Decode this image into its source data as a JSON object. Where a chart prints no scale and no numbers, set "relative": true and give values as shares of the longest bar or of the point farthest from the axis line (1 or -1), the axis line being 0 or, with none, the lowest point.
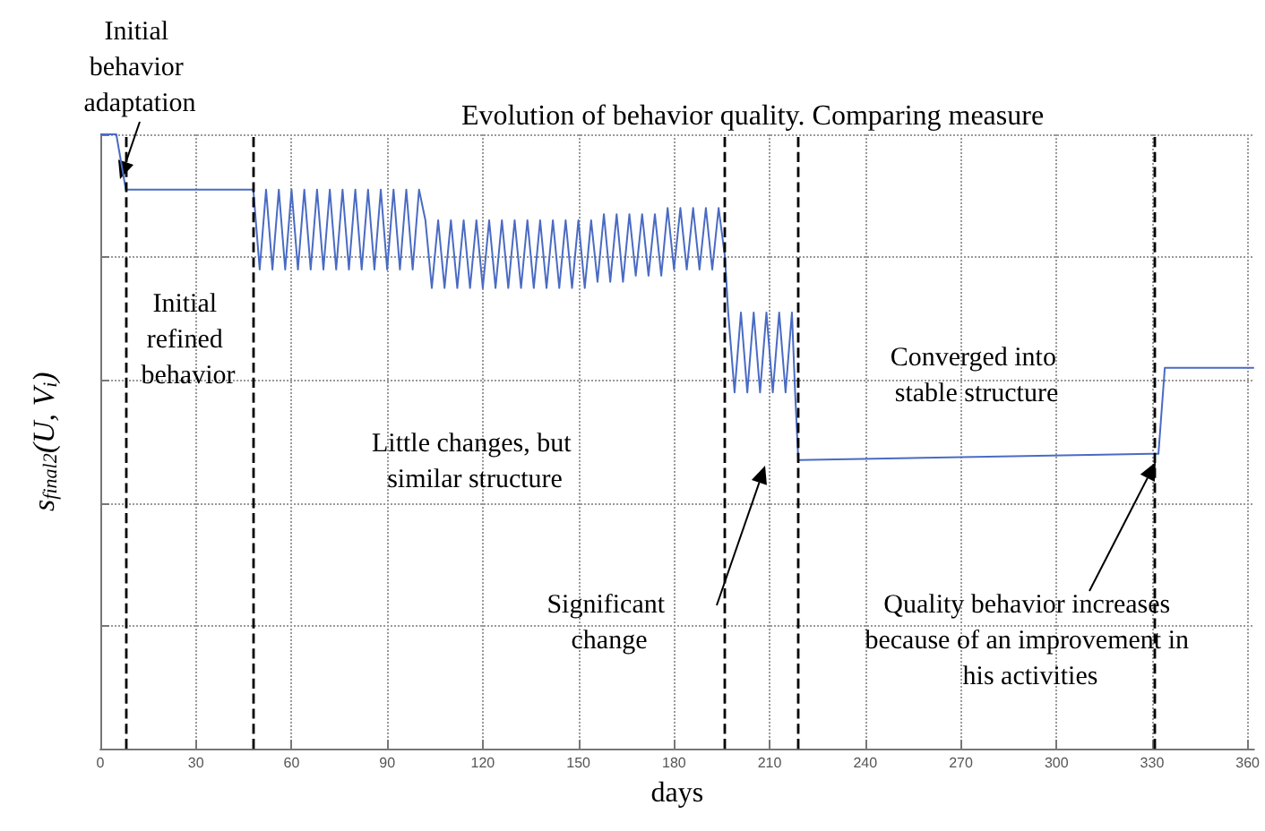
{
  "chart_data": {
    "type": "line",
    "title": "Evolution of behavior quality. Comparing measure",
    "xlabel": "days",
    "ylabel": "s$_{final2}$(U, V$_{i}$)",
    "relative": true,
    "xlim": [
      0,
      362
    ],
    "xticks": [
      0,
      30,
      60,
      90,
      120,
      150,
      180,
      210,
      240,
      270,
      300,
      330,
      360
    ],
    "grid": true,
    "marker": "none",
    "line_style": "solid",
    "series": [
      {
        "color": "#4a6bc4",
        "x": [
          0,
          5,
          8,
          47,
          48,
          50,
          52,
          54,
          56,
          58,
          60,
          62,
          64,
          66,
          68,
          70,
          72,
          74,
          76,
          78,
          80,
          82,
          84,
          86,
          88,
          90,
          92,
          94,
          96,
          98,
          100,
          102,
          104,
          106,
          108,
          110,
          112,
          114,
          116,
          118,
          120,
          122,
          124,
          126,
          128,
          130,
          132,
          134,
          136,
          138,
          140,
          142,
          144,
          146,
          148,
          150,
          152,
          154,
          156,
          158,
          160,
          162,
          164,
          166,
          168,
          170,
          172,
          174,
          176,
          178,
          180,
          182,
          184,
          186,
          188,
          190,
          192,
          194,
          196,
          197,
          199,
          201,
          203,
          205,
          207,
          209,
          211,
          213,
          215,
          217,
          218,
          219,
          330,
          332,
          334,
          362
        ],
        "values": [
          1.0,
          1.0,
          0.91,
          0.91,
          0.91,
          0.78,
          0.91,
          0.78,
          0.91,
          0.78,
          0.91,
          0.78,
          0.91,
          0.78,
          0.91,
          0.78,
          0.91,
          0.78,
          0.91,
          0.78,
          0.91,
          0.78,
          0.91,
          0.78,
          0.91,
          0.78,
          0.91,
          0.78,
          0.91,
          0.78,
          0.91,
          0.86,
          0.75,
          0.86,
          0.75,
          0.86,
          0.75,
          0.86,
          0.75,
          0.86,
          0.75,
          0.86,
          0.75,
          0.86,
          0.75,
          0.86,
          0.75,
          0.86,
          0.75,
          0.86,
          0.75,
          0.86,
          0.75,
          0.86,
          0.75,
          0.86,
          0.75,
          0.86,
          0.76,
          0.87,
          0.76,
          0.87,
          0.76,
          0.87,
          0.77,
          0.87,
          0.77,
          0.87,
          0.77,
          0.88,
          0.78,
          0.88,
          0.78,
          0.88,
          0.78,
          0.88,
          0.78,
          0.88,
          0.8,
          0.71,
          0.58,
          0.71,
          0.58,
          0.71,
          0.58,
          0.71,
          0.58,
          0.71,
          0.58,
          0.71,
          0.58,
          0.47,
          0.48,
          0.48,
          0.62,
          0.62
        ]
      }
    ],
    "ref_lines": [
      {
        "axis": "x",
        "value": 8,
        "color": "#000000",
        "line_style": "dashed"
      },
      {
        "axis": "x",
        "value": 48,
        "color": "#000000",
        "line_style": "dashed"
      },
      {
        "axis": "x",
        "value": 196,
        "color": "#000000",
        "line_style": "dashed"
      },
      {
        "axis": "x",
        "value": 219,
        "color": "#000000",
        "line_style": "dashed"
      },
      {
        "axis": "x",
        "value": 331,
        "color": "#000000",
        "line_style": "dashed"
      }
    ],
    "annotations": [
      "Initial behavior adaptation",
      "Initial refined behavior",
      "Little changes, but similar structure",
      "Significant change",
      "Converged into stable structure",
      "Quality behavior increases because of an improvement in his activities"
    ]
  }
}
